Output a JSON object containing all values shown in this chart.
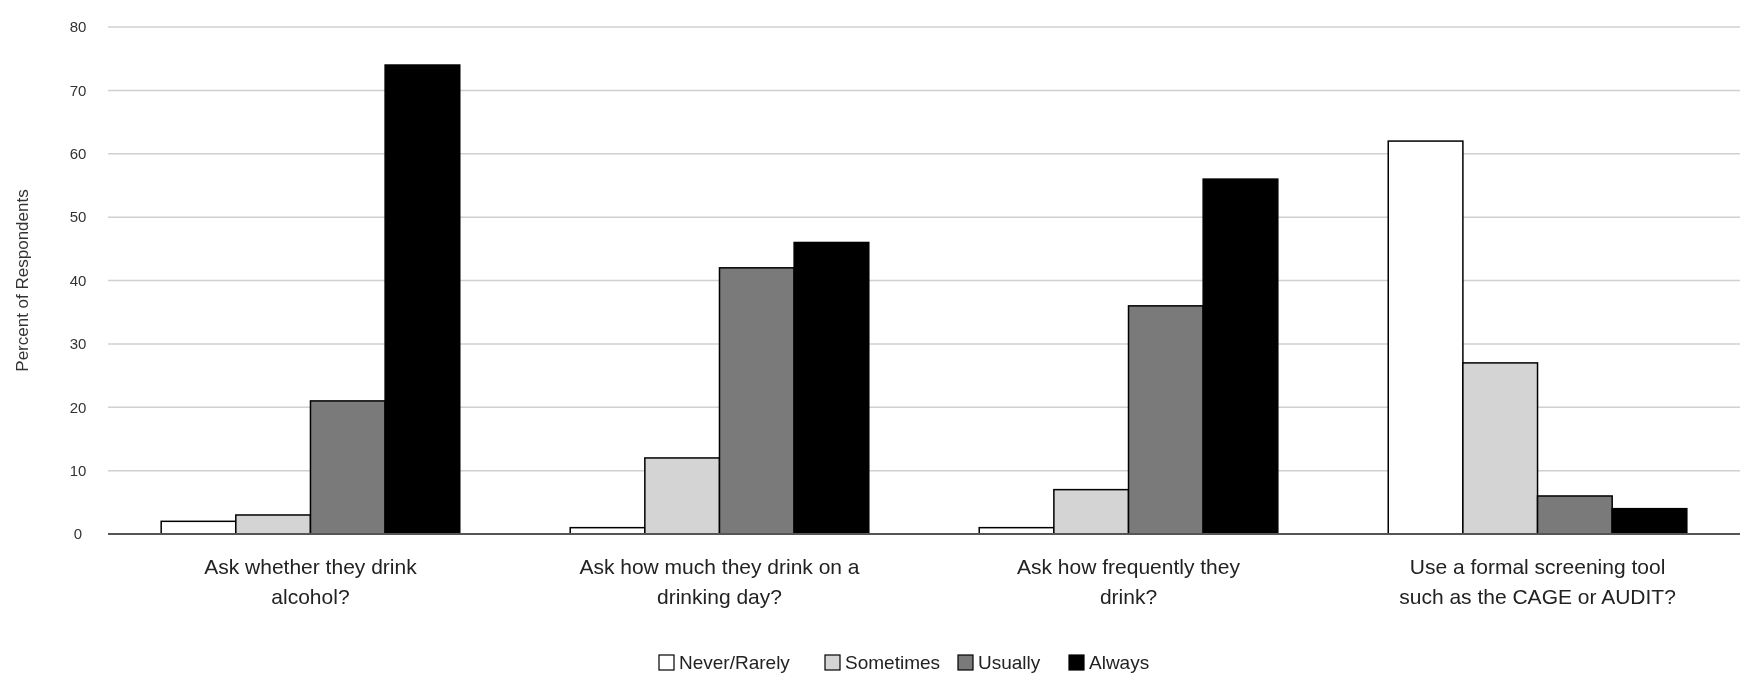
{
  "chart_data": {
    "type": "bar",
    "ylabel": "Percent of Respondents",
    "categories": [
      "Ask whether they drink alcohol?",
      "Ask how much they drink on a drinking day?",
      "Ask how frequently they drink?",
      "Use a formal screening tool such as the CAGE or AUDIT?"
    ],
    "series": [
      {
        "name": "Never/Rarely",
        "color": "#ffffff",
        "values": [
          2,
          1,
          1,
          62
        ]
      },
      {
        "name": "Sometimes",
        "color": "#d4d4d4",
        "values": [
          3,
          12,
          7,
          27
        ]
      },
      {
        "name": "Usually",
        "color": "#7a7a7a",
        "values": [
          21,
          42,
          36,
          6
        ]
      },
      {
        "name": "Always",
        "color": "#000000",
        "values": [
          74,
          46,
          56,
          4
        ]
      }
    ],
    "ylim": [
      0,
      80
    ],
    "yticks": [
      0,
      10,
      20,
      30,
      40,
      50,
      60,
      70,
      80
    ],
    "grid": "y",
    "legend": "bottom"
  }
}
